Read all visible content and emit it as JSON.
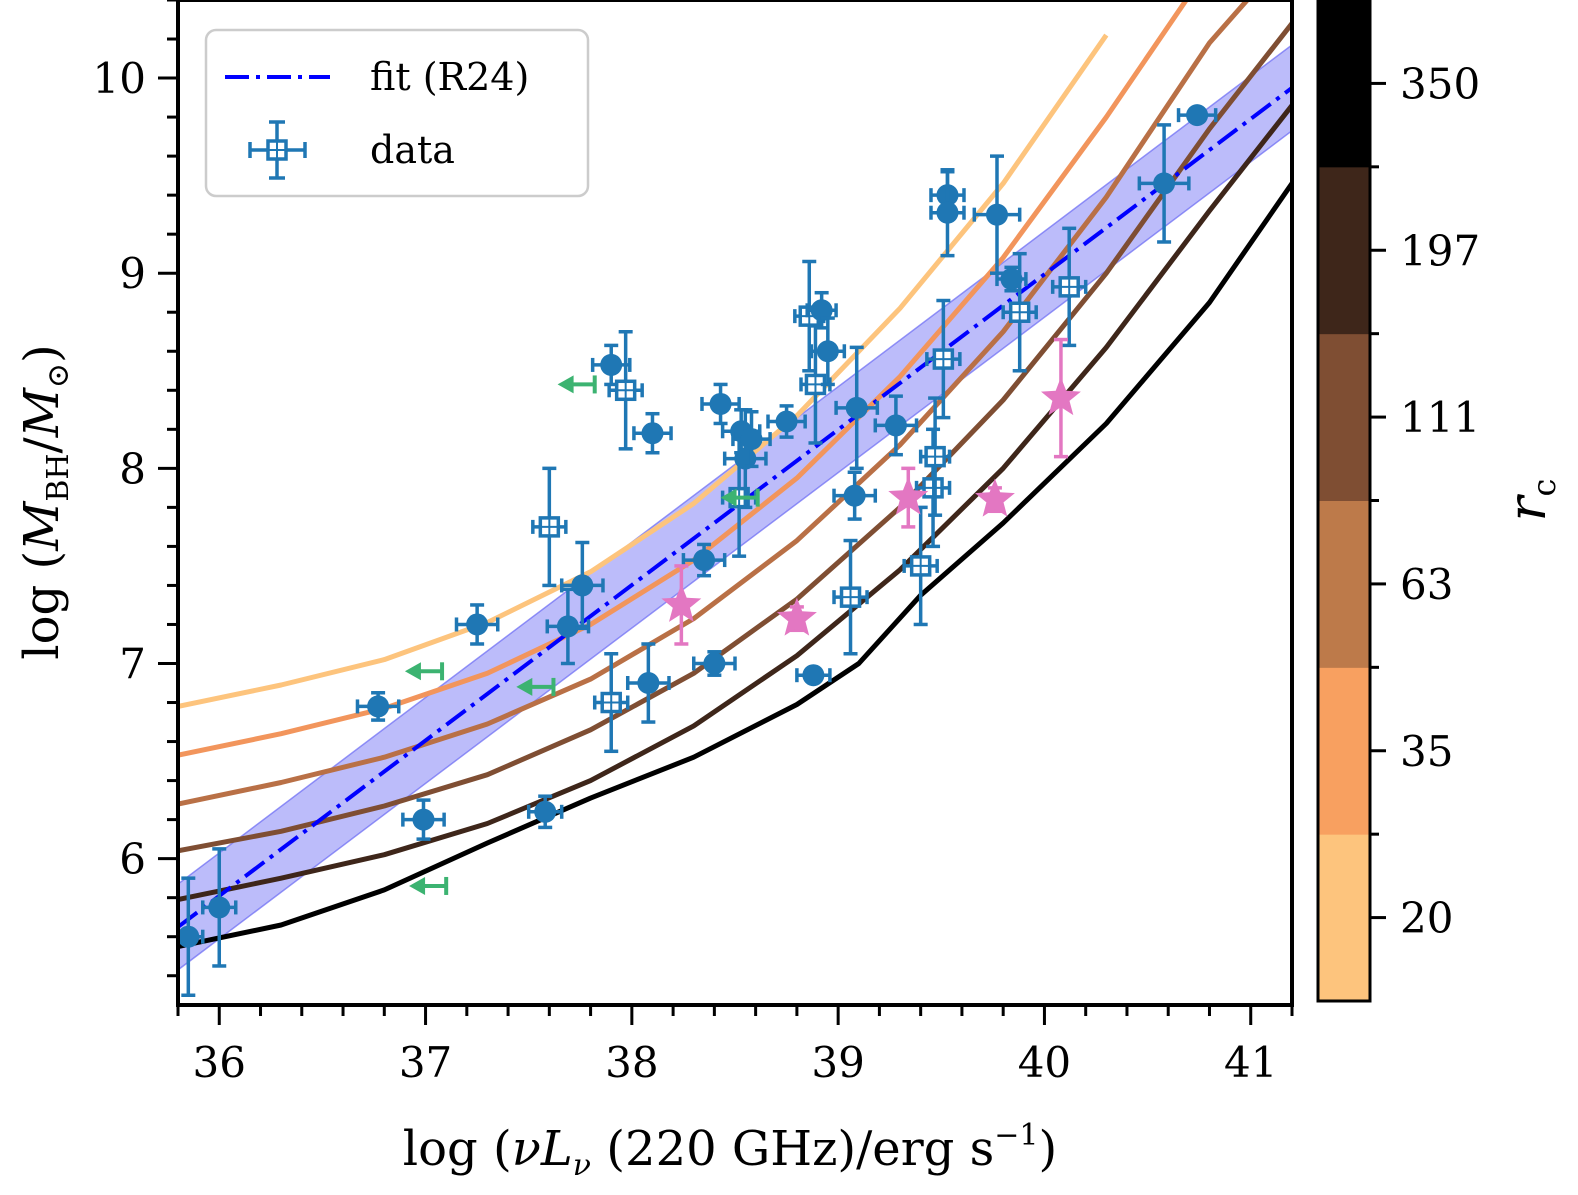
{
  "chart_data": {
    "type": "scatter",
    "xlabel": "log (νLν (220 GHz)/erg s⁻¹)",
    "ylabel": "log (MBH/M⊙)",
    "xlim": [
      35.8,
      41.2
    ],
    "ylim": [
      5.25,
      10.4
    ],
    "xticks": [
      36,
      37,
      38,
      39,
      40,
      41
    ],
    "yticks": [
      6,
      7,
      8,
      9,
      10
    ],
    "legend": {
      "position": "top-left",
      "entries": [
        {
          "label": "fit (R24)",
          "style": "dashdot-line",
          "color": "#0000ff"
        },
        {
          "label": "data",
          "style": "open-square-errorbar",
          "color": "#1f77b4"
        }
      ]
    },
    "fit": {
      "name": "fit (R24)",
      "x": [
        35.8,
        41.2
      ],
      "y": [
        5.65,
        9.95
      ],
      "band_halfwidth": 0.22,
      "color": "#0000ff"
    },
    "model_curves": [
      {
        "r_c": "20",
        "color": "#fdc47d",
        "x": [
          35.8,
          36.3,
          36.8,
          37.3,
          37.8,
          38.3,
          38.8,
          39.3,
          39.8,
          40.3
        ],
        "y": [
          6.78,
          6.89,
          7.02,
          7.21,
          7.47,
          7.82,
          8.27,
          8.82,
          9.46,
          10.22
        ]
      },
      {
        "r_c": "35",
        "color": "#f2955c",
        "x": [
          35.8,
          36.3,
          36.8,
          37.3,
          37.8,
          38.3,
          38.8,
          39.3,
          39.8,
          40.3,
          40.7
        ],
        "y": [
          6.53,
          6.64,
          6.77,
          6.95,
          7.2,
          7.53,
          7.95,
          8.47,
          9.08,
          9.8,
          10.42
        ]
      },
      {
        "r_c": "63",
        "color": "#b97046",
        "x": [
          35.8,
          36.3,
          36.8,
          37.3,
          37.8,
          38.3,
          38.8,
          39.3,
          39.8,
          40.3,
          40.8,
          41.0
        ],
        "y": [
          6.28,
          6.39,
          6.52,
          6.69,
          6.92,
          7.23,
          7.63,
          8.12,
          8.7,
          9.39,
          10.18,
          10.42
        ]
      },
      {
        "r_c": "111",
        "color": "#7f4e33",
        "x": [
          35.8,
          36.3,
          36.8,
          37.3,
          37.8,
          38.3,
          38.8,
          39.3,
          39.8,
          40.3,
          40.8,
          41.2
        ],
        "y": [
          6.04,
          6.14,
          6.27,
          6.43,
          6.66,
          6.95,
          7.33,
          7.8,
          8.35,
          9.0,
          9.74,
          10.28
        ]
      },
      {
        "r_c": "197",
        "color": "#3e261a",
        "x": [
          35.8,
          36.3,
          36.8,
          37.3,
          37.8,
          38.3,
          38.8,
          39.3,
          39.8,
          40.3,
          40.8,
          41.2
        ],
        "y": [
          5.79,
          5.9,
          6.02,
          6.18,
          6.4,
          6.68,
          7.04,
          7.48,
          8.0,
          8.62,
          9.32,
          9.86
        ]
      },
      {
        "r_c": "350",
        "color": "#000000",
        "x": [
          35.8,
          36.3,
          36.8,
          37.3,
          37.8,
          38.3,
          38.8,
          39.1,
          39.4,
          39.8,
          40.3,
          40.8,
          41.2
        ],
        "y": [
          5.55,
          5.66,
          5.84,
          6.08,
          6.31,
          6.52,
          6.79,
          7.0,
          7.35,
          7.72,
          8.23,
          8.85,
          9.46
        ]
      }
    ],
    "filled_points": [
      {
        "x": 35.85,
        "y": 5.6,
        "xerr": 0.07,
        "yerr": 0.3
      },
      {
        "x": 36.0,
        "y": 5.75,
        "xerr": 0.08,
        "yerr": 0.3
      },
      {
        "x": 36.77,
        "y": 6.78,
        "xerr": 0.1,
        "yerr": 0.07
      },
      {
        "x": 36.99,
        "y": 6.2,
        "xerr": 0.1,
        "yerr": 0.1
      },
      {
        "x": 37.25,
        "y": 7.2,
        "xerr": 0.1,
        "yerr": 0.1
      },
      {
        "x": 37.58,
        "y": 6.24,
        "xerr": 0.08,
        "yerr": 0.08
      },
      {
        "x": 37.69,
        "y": 7.19,
        "xerr": 0.1,
        "yerr": 0.19
      },
      {
        "x": 37.76,
        "y": 7.4,
        "xerr": 0.1,
        "yerr": 0.22
      },
      {
        "x": 37.9,
        "y": 8.53,
        "xerr": 0.09,
        "yerr": 0.1
      },
      {
        "x": 38.08,
        "y": 6.9,
        "xerr": 0.1,
        "yerr": 0.2
      },
      {
        "x": 38.1,
        "y": 8.18,
        "xerr": 0.09,
        "yerr": 0.1
      },
      {
        "x": 38.35,
        "y": 7.53,
        "xerr": 0.1,
        "yerr": 0.08
      },
      {
        "x": 38.4,
        "y": 7.0,
        "xerr": 0.1,
        "yerr": 0.06
      },
      {
        "x": 38.43,
        "y": 8.33,
        "xerr": 0.09,
        "yerr": 0.1
      },
      {
        "x": 38.53,
        "y": 8.19,
        "xerr": 0.09,
        "yerr": 0.11
      },
      {
        "x": 38.55,
        "y": 8.05,
        "xerr": 0.1,
        "yerr": 0.25
      },
      {
        "x": 38.58,
        "y": 8.15,
        "xerr": 0.09,
        "yerr": 0.14
      },
      {
        "x": 38.75,
        "y": 8.24,
        "xerr": 0.09,
        "yerr": 0.08
      },
      {
        "x": 38.88,
        "y": 6.94,
        "xerr": 0.08,
        "yerr": 0.03
      },
      {
        "x": 38.92,
        "y": 8.81,
        "xerr": 0.07,
        "yerr": 0.09
      },
      {
        "x": 38.95,
        "y": 8.6,
        "xerr": 0.08,
        "yerr": 0.17
      },
      {
        "x": 39.08,
        "y": 7.86,
        "xerr": 0.1,
        "yerr": 0.12
      },
      {
        "x": 39.09,
        "y": 8.31,
        "xerr": 0.1,
        "yerr": 0.31
      },
      {
        "x": 39.28,
        "y": 8.22,
        "xerr": 0.1,
        "yerr": 0.15
      },
      {
        "x": 39.53,
        "y": 9.4,
        "xerr": 0.08,
        "yerr": 0.12
      },
      {
        "x": 39.53,
        "y": 9.31,
        "xerr": 0.08,
        "yerr": 0.22
      },
      {
        "x": 39.77,
        "y": 9.3,
        "xerr": 0.11,
        "yerr": 0.3
      },
      {
        "x": 39.84,
        "y": 8.97,
        "xerr": 0.07,
        "yerr": 0.06
      },
      {
        "x": 40.58,
        "y": 9.46,
        "xerr": 0.12,
        "yerr": 0.3
      },
      {
        "x": 40.74,
        "y": 9.81,
        "xerr": 0.09,
        "yerr": 0.03
      }
    ],
    "open_points": [
      {
        "x": 37.6,
        "y": 7.7,
        "xerr": 0.08,
        "yerr": 0.3
      },
      {
        "x": 37.9,
        "y": 6.8,
        "xerr": 0.08,
        "yerr": 0.25
      },
      {
        "x": 37.97,
        "y": 8.4,
        "xerr": 0.08,
        "yerr": 0.3
      },
      {
        "x": 38.52,
        "y": 7.85,
        "xerr": 0.08,
        "yerr": 0.3
      },
      {
        "x": 38.86,
        "y": 8.78,
        "xerr": 0.07,
        "yerr": 0.28
      },
      {
        "x": 38.89,
        "y": 8.43,
        "xerr": 0.07,
        "yerr": 0.3
      },
      {
        "x": 39.06,
        "y": 7.34,
        "xerr": 0.08,
        "yerr": 0.29
      },
      {
        "x": 39.4,
        "y": 7.5,
        "xerr": 0.08,
        "yerr": 0.3
      },
      {
        "x": 39.46,
        "y": 7.9,
        "xerr": 0.08,
        "yerr": 0.3
      },
      {
        "x": 39.47,
        "y": 8.06,
        "xerr": 0.07,
        "yerr": 0.3
      },
      {
        "x": 39.51,
        "y": 8.56,
        "xerr": 0.08,
        "yerr": 0.3
      },
      {
        "x": 39.88,
        "y": 8.8,
        "xerr": 0.08,
        "yerr": 0.3
      },
      {
        "x": 40.12,
        "y": 8.93,
        "xerr": 0.08,
        "yerr": 0.3
      }
    ],
    "upper_limits": [
      {
        "x": 37.1,
        "y": 5.86,
        "length": 0.18
      },
      {
        "x": 37.08,
        "y": 6.96,
        "length": 0.18
      },
      {
        "x": 37.62,
        "y": 6.88,
        "length": 0.18
      },
      {
        "x": 37.82,
        "y": 8.43,
        "length": 0.18
      },
      {
        "x": 38.61,
        "y": 7.85,
        "length": 0.18
      }
    ],
    "stars": [
      {
        "x": 38.24,
        "y": 7.3,
        "xerr": 0.03,
        "yerr": 0.2
      },
      {
        "x": 38.8,
        "y": 7.23,
        "xerr": 0.02,
        "yerr": 0.06
      },
      {
        "x": 39.34,
        "y": 7.85,
        "xerr": 0.03,
        "yerr": 0.15
      },
      {
        "x": 39.76,
        "y": 7.84,
        "xerr": 0.02,
        "yerr": 0.06
      },
      {
        "x": 40.08,
        "y": 8.36,
        "xerr": 0.03,
        "yerr": 0.3
      }
    ],
    "colorbar": {
      "label": "rc",
      "segments": [
        {
          "label": "20",
          "color": "#fdc47d"
        },
        {
          "label": "35",
          "color": "#f8a060"
        },
        {
          "label": "63",
          "color": "#bd7a4a"
        },
        {
          "label": "111",
          "color": "#7f4e33"
        },
        {
          "label": "197",
          "color": "#3e261a"
        },
        {
          "label": "350",
          "color": "#000000"
        }
      ]
    }
  }
}
